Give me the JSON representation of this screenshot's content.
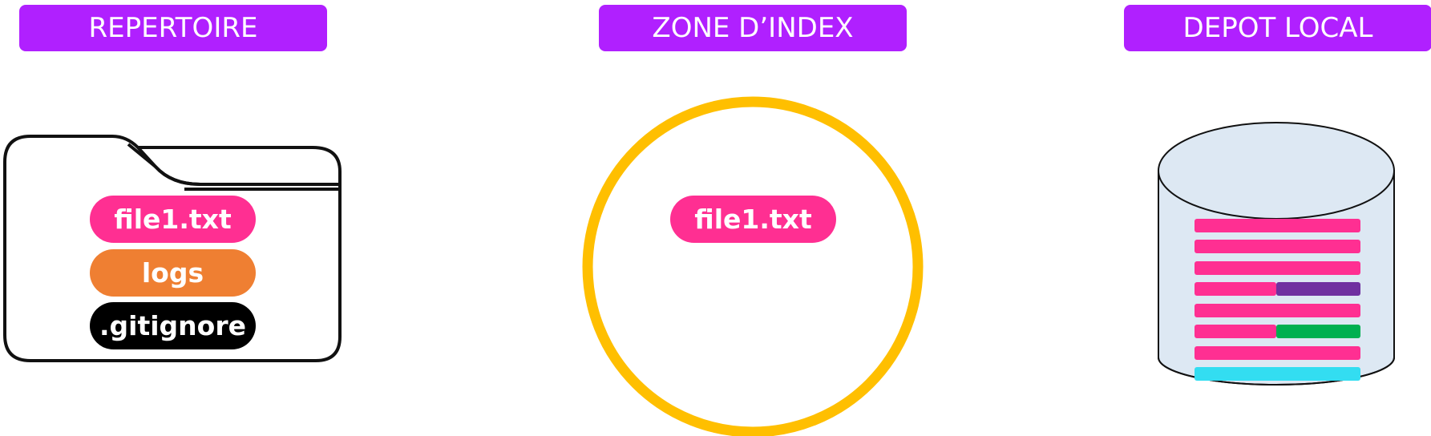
{
  "headers": {
    "repertoire": "REPERTOIRE",
    "zone_index": "ZONE D’INDEX",
    "depot_local": "DEPOT LOCAL"
  },
  "repertoire": {
    "items": [
      {
        "label": "file1.txt",
        "color": "#ff2f92"
      },
      {
        "label": "logs",
        "color": "#ef7f32"
      },
      {
        "label": ".gitignore",
        "color": "#000000"
      }
    ]
  },
  "zone_index": {
    "items": [
      {
        "label": "file1.txt",
        "color": "#ff2f92"
      }
    ],
    "ring_color": "#ffbf00"
  },
  "depot_local": {
    "cylinder_fill": "#dde8f3",
    "bar_colors": {
      "pink": "#ff2f92",
      "purple": "#7030a0",
      "green": "#00b050",
      "cyan": "#33ddf1"
    }
  },
  "colors": {
    "header_bg": "#b020ff"
  }
}
